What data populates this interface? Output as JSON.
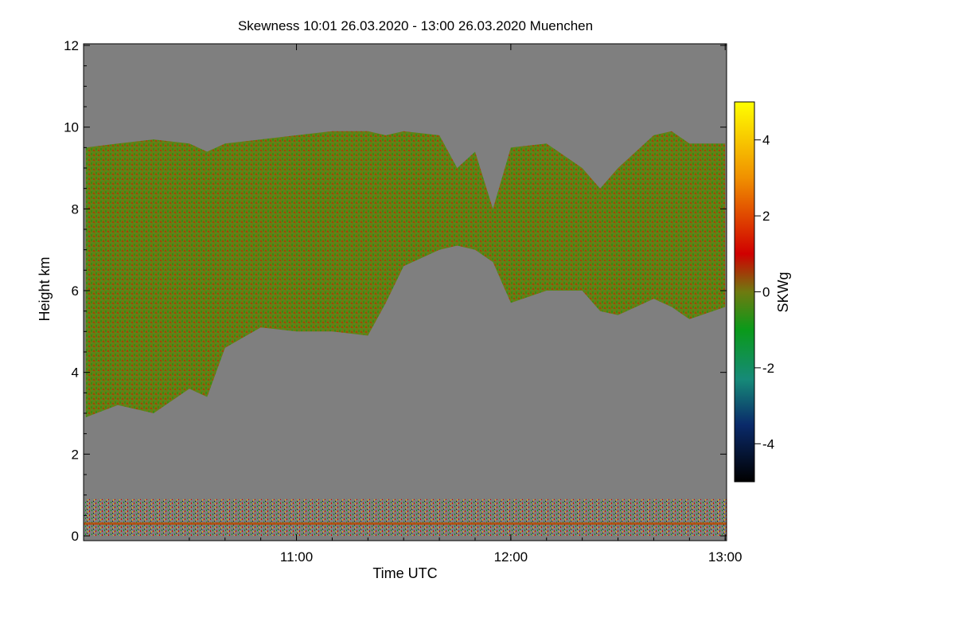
{
  "chart_data": {
    "type": "heatmap",
    "title": "Skewness   10:01 26.03.2020 - 13:00 26.03.2020 Muenchen",
    "xlabel": "Time UTC",
    "ylabel": "Height km",
    "x_range": [
      "10:01",
      "13:00"
    ],
    "x_ticks": [
      "11:00",
      "12:00",
      "13:00"
    ],
    "ylim": [
      0,
      12
    ],
    "y_ticks": [
      "0",
      "2",
      "4",
      "6",
      "8",
      "10",
      "12"
    ],
    "colorbar": {
      "label": "SKWg",
      "range": [
        -5,
        5
      ],
      "ticks": [
        "-4",
        "-2",
        "0",
        "2",
        "4"
      ],
      "stops": [
        {
          "value": -5,
          "color": "#000000"
        },
        {
          "value": -3.5,
          "color": "#0a2a6a"
        },
        {
          "value": -2.3,
          "color": "#168a78"
        },
        {
          "value": -1,
          "color": "#0a9a1a"
        },
        {
          "value": 0,
          "color": "#6f7a10"
        },
        {
          "value": 1,
          "color": "#d00000"
        },
        {
          "value": 3,
          "color": "#f09000"
        },
        {
          "value": 5,
          "color": "#ffff00"
        }
      ]
    },
    "background_color": "#7f7f7f",
    "cloud_region": {
      "description_values": "signal top (km) and bottom (km) vs time",
      "time": [
        "10:01",
        "10:10",
        "10:20",
        "10:30",
        "10:35",
        "10:40",
        "10:50",
        "11:00",
        "11:10",
        "11:20",
        "11:25",
        "11:30",
        "11:40",
        "11:45",
        "11:50",
        "11:55",
        "12:00",
        "12:10",
        "12:20",
        "12:25",
        "12:30",
        "12:40",
        "12:45",
        "12:50",
        "13:00"
      ],
      "top_km": [
        9.5,
        9.6,
        9.7,
        9.6,
        9.4,
        9.6,
        9.7,
        9.8,
        9.9,
        9.9,
        9.8,
        9.9,
        9.8,
        9.0,
        9.4,
        8.0,
        9.5,
        9.6,
        9.0,
        8.5,
        9.0,
        9.8,
        9.9,
        9.6,
        9.6
      ],
      "bottom_km": [
        2.9,
        3.2,
        3.0,
        3.6,
        3.4,
        4.6,
        5.1,
        5.0,
        5.0,
        4.9,
        5.7,
        6.6,
        7.0,
        7.1,
        7.0,
        6.7,
        5.7,
        6.0,
        6.0,
        5.5,
        5.4,
        5.8,
        5.6,
        5.3,
        5.6
      ]
    },
    "boundary_layer_km": [
      0.0,
      0.9
    ]
  }
}
